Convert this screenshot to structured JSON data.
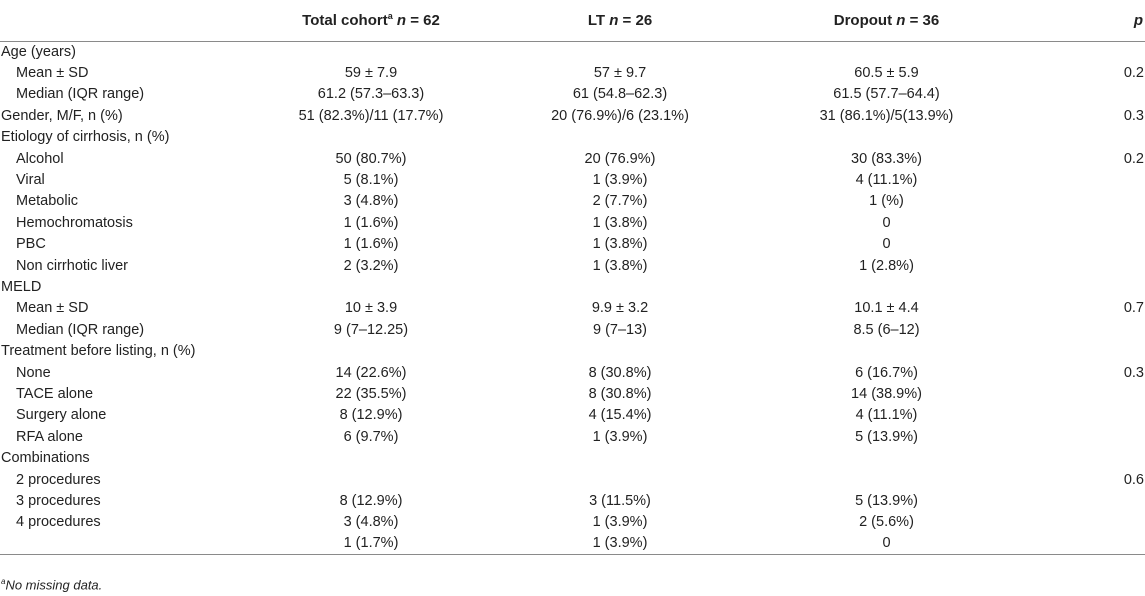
{
  "header": {
    "total_label": "Total cohort",
    "total_sup": "a",
    "total_n": "n",
    "total_count": "= 62",
    "lt_label": "LT",
    "lt_n": "n",
    "lt_count": "= 26",
    "dropout_label": "Dropout",
    "dropout_n": "n",
    "dropout_count": "= 36",
    "p_label": "p"
  },
  "rows": [
    {
      "label": "Age (years)",
      "indent": false,
      "total": "",
      "lt": "",
      "dropout": "",
      "p": ""
    },
    {
      "label": "Mean ± SD",
      "indent": true,
      "total": "59 ± 7.9",
      "lt": "57 ± 9.7",
      "dropout": "60.5 ± 5.9",
      "p": "0.2"
    },
    {
      "label": "Median (IQR range)",
      "indent": true,
      "total": "61.2 (57.3–63.3)",
      "lt": "61 (54.8–62.3)",
      "dropout": "61.5 (57.7–64.4)",
      "p": ""
    },
    {
      "label": "Gender, M/F, n (%)",
      "indent": false,
      "total": "51 (82.3%)/11 (17.7%)",
      "lt": "20 (76.9%)/6 (23.1%)",
      "dropout": "31 (86.1%)/5(13.9%)",
      "p": "0.3"
    },
    {
      "label": "Etiology of cirrhosis, n (%)",
      "indent": false,
      "total": "",
      "lt": "",
      "dropout": "",
      "p": ""
    },
    {
      "label": "Alcohol",
      "indent": true,
      "total": "50 (80.7%)",
      "lt": "20 (76.9%)",
      "dropout": "30 (83.3%)",
      "p": "0.2"
    },
    {
      "label": "Viral",
      "indent": true,
      "total": "5 (8.1%)",
      "lt": "1 (3.9%)",
      "dropout": "4 (11.1%)",
      "p": ""
    },
    {
      "label": "Metabolic",
      "indent": true,
      "total": "3 (4.8%)",
      "lt": "2 (7.7%)",
      "dropout": "1 (%)",
      "p": ""
    },
    {
      "label": "Hemochromatosis",
      "indent": true,
      "total": "1 (1.6%)",
      "lt": "1 (3.8%)",
      "dropout": "0",
      "p": ""
    },
    {
      "label": "PBC",
      "indent": true,
      "total": "1 (1.6%)",
      "lt": "1 (3.8%)",
      "dropout": "0",
      "p": ""
    },
    {
      "label": "Non cirrhotic liver",
      "indent": true,
      "total": "2 (3.2%)",
      "lt": "1 (3.8%)",
      "dropout": "1 (2.8%)",
      "p": ""
    },
    {
      "label": "MELD",
      "indent": false,
      "total": "",
      "lt": "",
      "dropout": "",
      "p": ""
    },
    {
      "label": "Mean ± SD",
      "indent": true,
      "total": "10 ± 3.9",
      "lt": "9.9 ± 3.2",
      "dropout": "10.1 ± 4.4",
      "p": "0.7"
    },
    {
      "label": "Median (IQR range)",
      "indent": true,
      "total": "9 (7–12.25)",
      "lt": "9 (7–13)",
      "dropout": "8.5 (6–12)",
      "p": ""
    },
    {
      "label": "Treatment before listing, n (%)",
      "indent": false,
      "total": "",
      "lt": "",
      "dropout": "",
      "p": ""
    },
    {
      "label": "None",
      "indent": true,
      "total": "14 (22.6%)",
      "lt": "8 (30.8%)",
      "dropout": "6 (16.7%)",
      "p": "0.3"
    },
    {
      "label": "TACE alone",
      "indent": true,
      "total": "22 (35.5%)",
      "lt": "8 (30.8%)",
      "dropout": "14 (38.9%)",
      "p": ""
    },
    {
      "label": "Surgery alone",
      "indent": true,
      "total": "8 (12.9%)",
      "lt": "4 (15.4%)",
      "dropout": "4 (11.1%)",
      "p": ""
    },
    {
      "label": "RFA alone",
      "indent": true,
      "total": "6 (9.7%)",
      "lt": "1 (3.9%)",
      "dropout": "5 (13.9%)",
      "p": ""
    },
    {
      "label": "Combinations",
      "indent": false,
      "total": "",
      "lt": "",
      "dropout": "",
      "p": ""
    },
    {
      "label": "2 procedures",
      "indent": true,
      "total": "",
      "lt": "",
      "dropout": "",
      "p": "0.6"
    },
    {
      "label": "3 procedures",
      "indent": true,
      "total": "8 (12.9%)",
      "lt": "3 (11.5%)",
      "dropout": "5 (13.9%)",
      "p": ""
    },
    {
      "label": "4 procedures",
      "indent": true,
      "total": "3 (4.8%)",
      "lt": "1 (3.9%)",
      "dropout": "2 (5.6%)",
      "p": ""
    },
    {
      "label": "",
      "indent": true,
      "total": "1 (1.7%)",
      "lt": "1 (3.9%)",
      "dropout": "0",
      "p": ""
    }
  ],
  "footnote": {
    "sup": "a",
    "text": "No missing data."
  }
}
